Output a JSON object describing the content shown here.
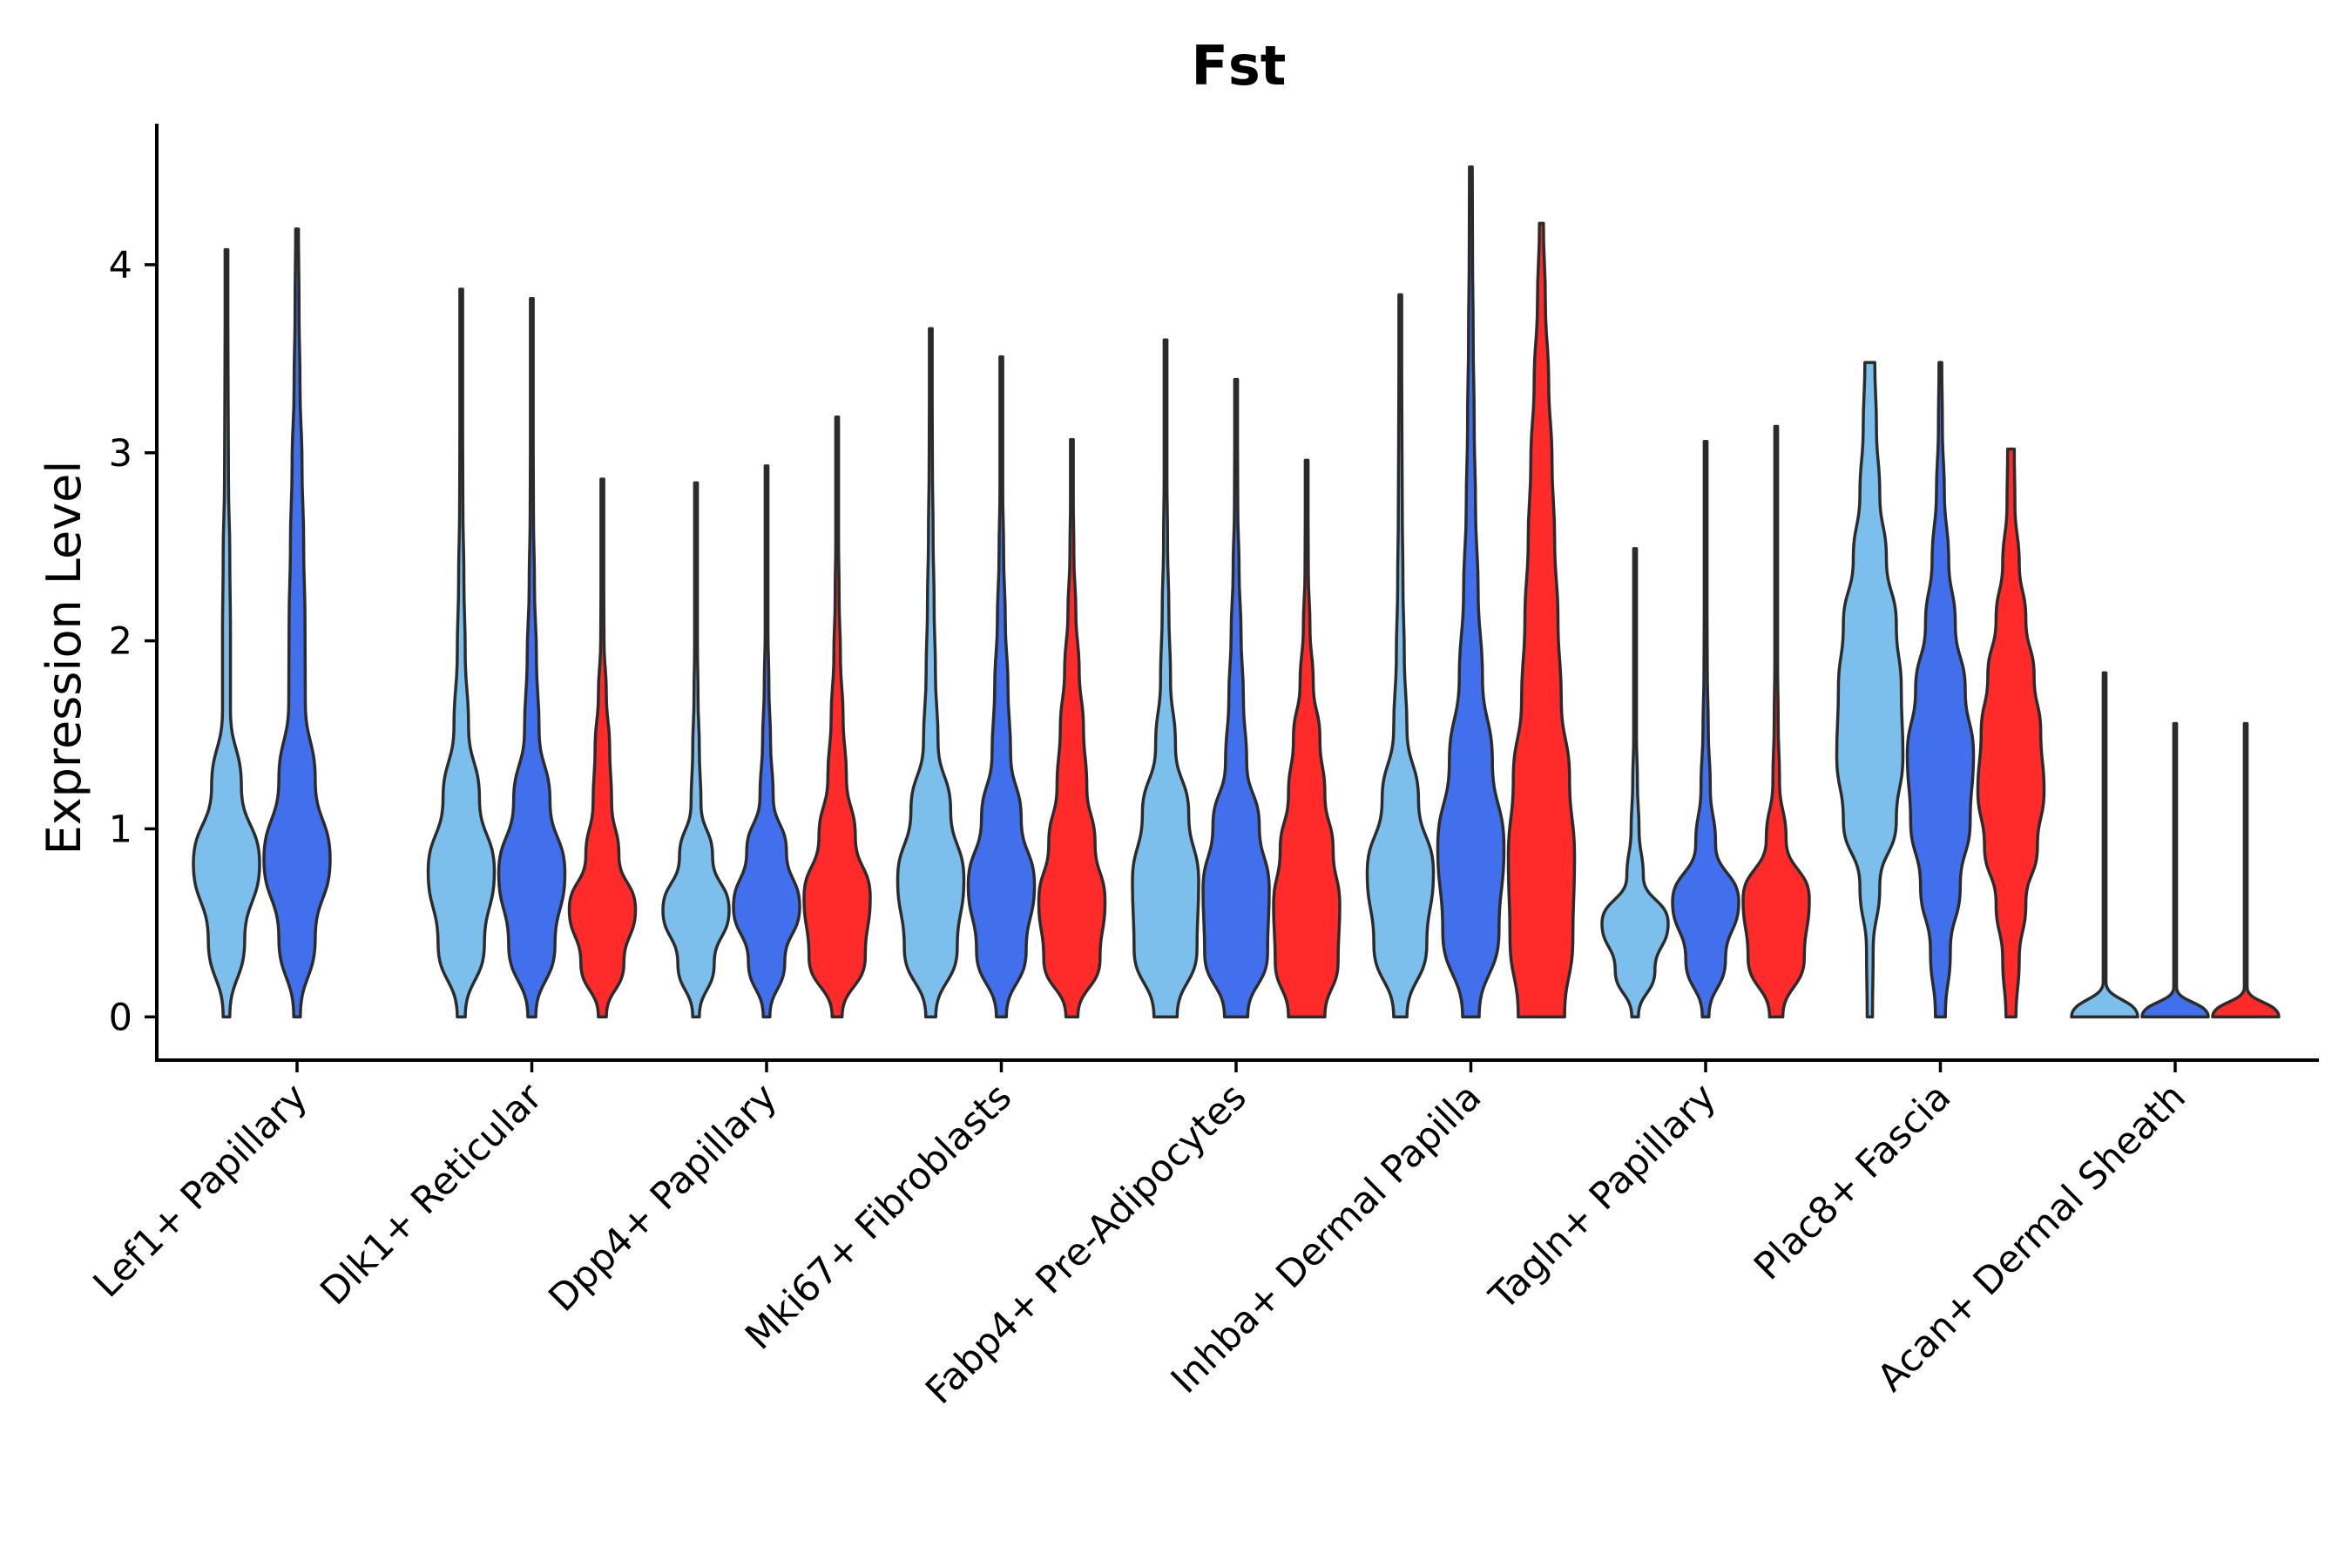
{
  "chart_data": {
    "type": "violin",
    "title": "Fst",
    "xlabel": "",
    "ylabel": "Expression Level",
    "ylim": [
      -0.23,
      4.75
    ],
    "yticks": [
      0,
      1,
      2,
      3,
      4
    ],
    "grid": false,
    "legend": "none",
    "categories": [
      "Lef1+ Papillary",
      "Dlk1+ Reticular",
      "Dpp4+ Papillary",
      "Mki67+ Fibroblasts",
      "Fabp4+ Pre-Adipocytes",
      "Inhba+ Dermal Papilla",
      "Tagln+ Papillary",
      "Plac8+ Fascia",
      "Acan+ Dermal Sheath"
    ],
    "group_colors": [
      "#7dbfec",
      "#4270ed",
      "#ff2b2b"
    ],
    "violins": [
      {
        "category": 0,
        "group": 0,
        "max": 4.08,
        "widths": [
          0.1,
          0.55,
          1.0,
          0.45,
          0.12,
          0.12,
          0.1,
          0.06,
          0.05,
          0.04,
          0.03
        ]
      },
      {
        "category": 0,
        "group": 1,
        "max": 4.19,
        "widths": [
          0.1,
          0.55,
          1.0,
          0.55,
          0.25,
          0.24,
          0.2,
          0.15,
          0.09,
          0.06,
          0.04
        ]
      },
      {
        "category": 1,
        "group": 0,
        "max": 3.87,
        "widths": [
          0.12,
          0.7,
          1.0,
          0.55,
          0.22,
          0.12,
          0.08,
          0.05,
          0.04,
          0.03,
          0.02
        ]
      },
      {
        "category": 1,
        "group": 1,
        "max": 3.82,
        "widths": [
          0.12,
          0.7,
          1.0,
          0.55,
          0.22,
          0.14,
          0.08,
          0.05,
          0.04,
          0.03,
          0.02
        ]
      },
      {
        "category": 1,
        "group": 2,
        "max": 2.86,
        "widths": [
          0.12,
          0.65,
          1.0,
          0.5,
          0.28,
          0.22,
          0.12,
          0.05,
          0.03,
          0.02,
          0.02
        ]
      },
      {
        "category": 2,
        "group": 0,
        "max": 2.84,
        "widths": [
          0.1,
          0.55,
          1.0,
          0.5,
          0.15,
          0.1,
          0.06,
          0.03,
          0.02,
          0.02,
          0.02
        ]
      },
      {
        "category": 2,
        "group": 1,
        "max": 2.93,
        "widths": [
          0.1,
          0.55,
          1.0,
          0.6,
          0.2,
          0.12,
          0.07,
          0.04,
          0.03,
          0.02,
          0.02
        ]
      },
      {
        "category": 2,
        "group": 2,
        "max": 3.19,
        "widths": [
          0.15,
          0.85,
          1.0,
          0.55,
          0.28,
          0.18,
          0.1,
          0.06,
          0.04,
          0.03,
          0.02
        ]
      },
      {
        "category": 3,
        "group": 0,
        "max": 3.66,
        "widths": [
          0.15,
          0.8,
          1.0,
          0.6,
          0.22,
          0.14,
          0.1,
          0.07,
          0.05,
          0.03,
          0.02
        ]
      },
      {
        "category": 3,
        "group": 1,
        "max": 3.51,
        "widths": [
          0.15,
          0.75,
          1.0,
          0.6,
          0.28,
          0.2,
          0.12,
          0.07,
          0.04,
          0.03,
          0.02
        ]
      },
      {
        "category": 3,
        "group": 2,
        "max": 3.07,
        "widths": [
          0.18,
          0.85,
          1.0,
          0.7,
          0.45,
          0.35,
          0.22,
          0.12,
          0.06,
          0.03,
          0.02
        ]
      },
      {
        "category": 4,
        "group": 0,
        "max": 3.6,
        "widths": [
          0.35,
          0.95,
          1.0,
          0.7,
          0.3,
          0.15,
          0.1,
          0.06,
          0.04,
          0.03,
          0.02
        ]
      },
      {
        "category": 4,
        "group": 1,
        "max": 3.39,
        "widths": [
          0.35,
          0.95,
          1.0,
          0.7,
          0.32,
          0.22,
          0.15,
          0.09,
          0.05,
          0.03,
          0.02
        ]
      },
      {
        "category": 4,
        "group": 2,
        "max": 2.96,
        "widths": [
          0.55,
          0.95,
          1.0,
          0.8,
          0.55,
          0.4,
          0.2,
          0.1,
          0.05,
          0.03,
          0.02
        ]
      },
      {
        "category": 5,
        "group": 0,
        "max": 3.84,
        "widths": [
          0.2,
          0.8,
          1.0,
          0.55,
          0.2,
          0.12,
          0.08,
          0.06,
          0.05,
          0.04,
          0.02
        ]
      },
      {
        "category": 5,
        "group": 1,
        "max": 4.52,
        "widths": [
          0.25,
          0.85,
          1.0,
          0.65,
          0.35,
          0.22,
          0.14,
          0.1,
          0.07,
          0.05,
          0.03
        ]
      },
      {
        "category": 5,
        "group": 2,
        "max": 4.22,
        "widths": [
          0.7,
          0.95,
          1.0,
          0.85,
          0.6,
          0.5,
          0.4,
          0.32,
          0.22,
          0.12,
          0.06
        ]
      },
      {
        "category": 6,
        "group": 0,
        "max": 2.49,
        "widths": [
          0.1,
          0.6,
          1.0,
          0.25,
          0.12,
          0.07,
          0.04,
          0.03,
          0.02,
          0.02,
          0.02
        ]
      },
      {
        "category": 6,
        "group": 1,
        "max": 3.06,
        "widths": [
          0.1,
          0.6,
          1.0,
          0.3,
          0.14,
          0.08,
          0.05,
          0.03,
          0.02,
          0.02,
          0.02
        ]
      },
      {
        "category": 6,
        "group": 2,
        "max": 3.14,
        "widths": [
          0.2,
          0.85,
          1.0,
          0.3,
          0.1,
          0.06,
          0.04,
          0.03,
          0.02,
          0.02,
          0.02
        ]
      },
      {
        "category": 7,
        "group": 0,
        "max": 3.48,
        "widths": [
          0.08,
          0.1,
          0.3,
          0.8,
          1.0,
          0.95,
          0.8,
          0.5,
          0.3,
          0.2,
          0.15
        ]
      },
      {
        "category": 7,
        "group": 1,
        "max": 3.48,
        "widths": [
          0.15,
          0.3,
          0.6,
          0.9,
          1.0,
          0.75,
          0.45,
          0.25,
          0.12,
          0.06,
          0.03
        ]
      },
      {
        "category": 7,
        "group": 2,
        "max": 3.02,
        "widths": [
          0.15,
          0.25,
          0.45,
          0.8,
          1.0,
          0.9,
          0.7,
          0.45,
          0.25,
          0.12,
          0.1
        ]
      },
      {
        "category": 8,
        "group": 0,
        "max": 1.83,
        "widths": [
          1.0,
          0.0,
          0.0,
          0.0,
          0.0,
          0.0,
          0.0,
          0.0,
          0.0,
          0.0,
          0.0
        ]
      },
      {
        "category": 8,
        "group": 1,
        "max": 1.56,
        "widths": [
          1.0,
          0.0,
          0.0,
          0.0,
          0.0,
          0.0,
          0.0,
          0.0,
          0.0,
          0.0,
          0.0
        ]
      },
      {
        "category": 8,
        "group": 2,
        "max": 1.56,
        "widths": [
          1.0,
          0.0,
          0.0,
          0.0,
          0.0,
          0.0,
          0.0,
          0.0,
          0.0,
          0.0,
          0.0
        ]
      }
    ]
  }
}
